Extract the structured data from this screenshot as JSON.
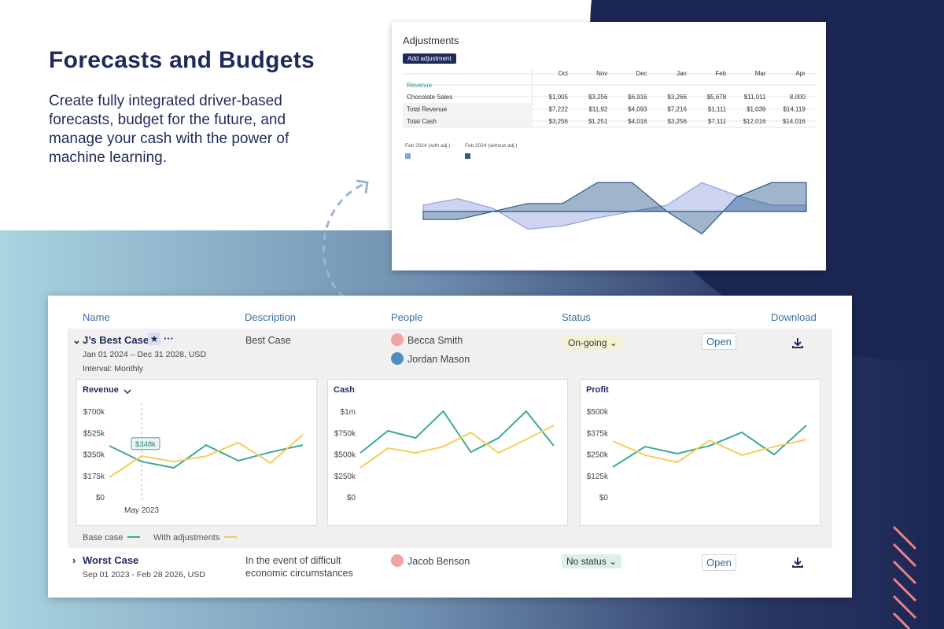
{
  "hero": {
    "title": "Forecasts and Budgets",
    "text": "Create fully integrated driver-based forecasts, budget for the future, and manage your cash with the power of machine learning."
  },
  "adjustments": {
    "title": "Adjustments",
    "button": "Add adjustment",
    "columns": [
      "Oct",
      "Nov",
      "Dec",
      "Jan",
      "Feb",
      "Mar",
      "Apr"
    ],
    "section": "Revenue",
    "rows": [
      {
        "label": "Chocolate Sales",
        "cells": [
          "$1,005",
          "$3,256",
          "$6,916",
          "$3,266",
          "$5,678",
          "$11,011",
          "8,000"
        ]
      },
      {
        "label": "Total Revenue",
        "cells": [
          "$7,222",
          "$11,92",
          "$4,093",
          "$7,216",
          "$1,111",
          "$1,039",
          "$14,119"
        ]
      },
      {
        "label": "Total Cash",
        "cells": [
          "$3,256",
          "$1,251",
          "$4,016",
          "$3,256",
          "$7,111",
          "$12,016",
          "$14,016"
        ]
      }
    ],
    "chart": {
      "type": "area",
      "ylim": [
        -50,
        50
      ],
      "series": [
        {
          "name": "Feb 2024 (with adj.)",
          "color": "#8fa0dc",
          "values": [
            8,
            16,
            4,
            -22,
            -18,
            -8,
            0,
            8,
            36,
            20,
            8,
            8
          ]
        },
        {
          "name": "Feb 2024 (without adj.)",
          "color": "#2d5b8c",
          "values": [
            -10,
            -10,
            0,
            10,
            10,
            36,
            36,
            0,
            -28,
            18,
            36,
            36
          ]
        }
      ]
    }
  },
  "scenarios": {
    "columns": [
      "Name",
      "Description",
      "People",
      "Status",
      "Download"
    ],
    "rows": [
      {
        "name": "J’s Best Case",
        "dates": "Jan 01 2024 – Dec 31 2028, USD",
        "interval": "Interval: Monthly",
        "description": "Best Case",
        "people": [
          "Becca Smith",
          "Jordan Mason"
        ],
        "status": "On-going",
        "action": "Open"
      },
      {
        "name": "Worst Case",
        "dates": "Sep 01 2023 - Feb 28 2026, USD",
        "description": "In the event of difficult economic circumstances",
        "people": [
          "Jacob Benson"
        ],
        "status": "No status",
        "action": "Open"
      }
    ],
    "legend": [
      {
        "name": "Base case",
        "color": "#3aa99a"
      },
      {
        "name": "With adjustments",
        "color": "#f5cd5a"
      }
    ],
    "charts": [
      {
        "type": "line",
        "title": "Revenue",
        "categories": [
          null,
          "May 2023",
          null,
          null,
          null,
          null,
          null
        ],
        "ylim": [
          0,
          700000
        ],
        "yticks": [
          {
            "value": 0,
            "label": "$0"
          },
          {
            "value": 175000,
            "label": "$175k"
          },
          {
            "value": 350000,
            "label": "$350k"
          },
          {
            "value": 525000,
            "label": "$525k"
          },
          {
            "value": 700000,
            "label": "$700k"
          }
        ],
        "tooltip": {
          "value": 348000,
          "label": "$348k"
        },
        "series": [
          {
            "values": [
              424000,
              295000,
              244000,
              430000,
              302000,
              372000,
              430000
            ]
          },
          {
            "values": [
              167000,
              340000,
              295000,
              340000,
              450000,
              283000,
              514000
            ]
          }
        ]
      },
      {
        "type": "line",
        "title": "Cash",
        "categories": [
          null,
          null,
          null,
          null,
          null,
          null,
          null,
          null
        ],
        "ylim": [
          0,
          1000000
        ],
        "yticks": [
          {
            "value": 0,
            "label": "$0"
          },
          {
            "value": 250000,
            "label": "$250k"
          },
          {
            "value": 500000,
            "label": "$500k"
          },
          {
            "value": 750000,
            "label": "$750k"
          },
          {
            "value": 1000000,
            "label": "$1m"
          }
        ],
        "series": [
          {
            "values": [
              523000,
              780000,
              697000,
              1009000,
              532000,
              697000,
              1009000,
              606000
            ]
          },
          {
            "values": [
              349000,
              578000,
              523000,
              596000,
              761000,
              523000,
              680000,
              844000
            ]
          }
        ]
      },
      {
        "type": "line",
        "title": "Profit",
        "categories": [
          null,
          null,
          null,
          null,
          null,
          null,
          null
        ],
        "ylim": [
          0,
          500000
        ],
        "yticks": [
          {
            "value": 0,
            "label": "$0"
          },
          {
            "value": 125000,
            "label": "$125k"
          },
          {
            "value": 250000,
            "label": "$250k"
          },
          {
            "value": 375000,
            "label": "$375k"
          },
          {
            "value": 500000,
            "label": "$500k"
          }
        ],
        "series": [
          {
            "values": [
              179000,
              298000,
              257000,
              303000,
              381000,
              252000,
              422000
            ]
          },
          {
            "values": [
              330000,
              248000,
              206000,
              335000,
              248000,
              298000,
              339000
            ]
          }
        ]
      }
    ]
  }
}
